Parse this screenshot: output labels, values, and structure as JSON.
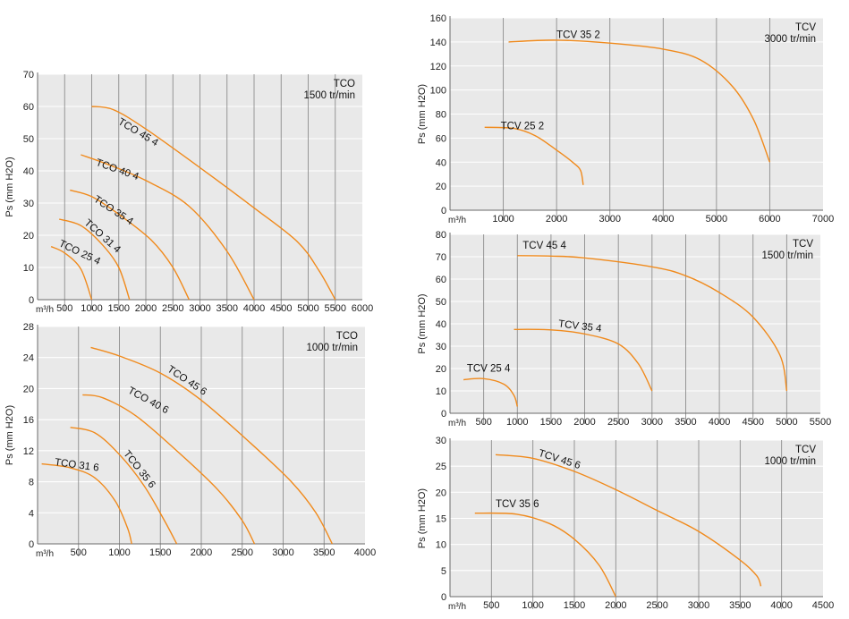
{
  "chart_data": [
    {
      "id": "tco1500",
      "type": "line",
      "ylabel": "Ps (mm H2O)",
      "xunit": "m³/h",
      "xlim": [
        0,
        6000
      ],
      "ylim": [
        0,
        70
      ],
      "xticks": [
        {
          "v": 0,
          "t": "0"
        },
        {
          "v": 500,
          "t": "500"
        },
        {
          "v": 1000,
          "t": "1000"
        },
        {
          "v": 1500,
          "t": "1500"
        },
        {
          "v": 2000,
          "t": "2000"
        },
        {
          "v": 2500,
          "t": "2500"
        },
        {
          "v": 3000,
          "t": "3000"
        },
        {
          "v": 3500,
          "t": "3500"
        },
        {
          "v": 4000,
          "t": "4000"
        },
        {
          "v": 4500,
          "t": "4500"
        },
        {
          "v": 5000,
          "t": "5000"
        },
        {
          "v": 5500,
          "t": "5500"
        },
        {
          "v": 6000,
          "t": "6000"
        }
      ],
      "yticks": [
        {
          "v": 10,
          "t": "10"
        },
        {
          "v": 20,
          "t": "20"
        },
        {
          "v": 30,
          "t": "30"
        },
        {
          "v": 40,
          "t": "40"
        },
        {
          "v": 50,
          "t": "50"
        },
        {
          "v": 60,
          "t": "60"
        },
        {
          "v": 70,
          "t": "70"
        }
      ],
      "vgrid": [
        500,
        1000,
        1500,
        2000,
        2500,
        3000,
        3500,
        4000,
        4500,
        5000,
        5500
      ],
      "hgrid": [
        10,
        20,
        30,
        40,
        50,
        60,
        70
      ],
      "annotation": [
        "TCO",
        "1500 tr/min"
      ],
      "series": [
        {
          "name": "TCO 45 4",
          "x": [
            1000,
            1400,
            2000,
            3000,
            4000,
            4800,
            5200,
            5500
          ],
          "y": [
            60,
            59,
            53,
            41,
            28.5,
            18,
            9,
            0
          ],
          "label_at": [
            1450,
            54
          ]
        },
        {
          "name": "TCO 40 4",
          "x": [
            800,
            1300,
            2000,
            2800,
            3500,
            4000
          ],
          "y": [
            45,
            42,
            37,
            29,
            15,
            0
          ],
          "label_at": [
            1050,
            41
          ]
        },
        {
          "name": "TCO 35 4",
          "x": [
            600,
            1000,
            1500,
            2100,
            2500,
            2800
          ],
          "y": [
            34,
            32,
            26.5,
            18.5,
            10,
            0
          ],
          "label_at": [
            1000,
            30
          ]
        },
        {
          "name": "TCO 31 4",
          "x": [
            400,
            800,
            1200,
            1500,
            1700
          ],
          "y": [
            25,
            23,
            17,
            10,
            0
          ],
          "label_at": [
            820,
            23
          ]
        },
        {
          "name": "TCO 25 4",
          "x": [
            250,
            500,
            800,
            1000
          ],
          "y": [
            16.5,
            14.5,
            9.5,
            0
          ],
          "label_at": [
            360,
            16
          ]
        }
      ]
    },
    {
      "id": "tco1000",
      "type": "line",
      "ylabel": "Ps (mm H2O)",
      "xunit": "m³/h",
      "xlim": [
        0,
        4000
      ],
      "ylim": [
        0,
        28
      ],
      "xticks": [
        {
          "v": 0,
          "t": "0"
        },
        {
          "v": 500,
          "t": "500"
        },
        {
          "v": 1000,
          "t": "1000"
        },
        {
          "v": 1500,
          "t": "1500"
        },
        {
          "v": 2000,
          "t": "2000"
        },
        {
          "v": 2500,
          "t": "2500"
        },
        {
          "v": 3000,
          "t": "3000"
        },
        {
          "v": 3500,
          "t": "3500"
        },
        {
          "v": 4000,
          "t": "4000"
        }
      ],
      "yticks": [
        {
          "v": 4,
          "t": "4"
        },
        {
          "v": 8,
          "t": "8"
        },
        {
          "v": 12,
          "t": "12"
        },
        {
          "v": 16,
          "t": "16"
        },
        {
          "v": 20,
          "t": "20"
        },
        {
          "v": 24,
          "t": "24"
        },
        {
          "v": 28,
          "t": "28"
        }
      ],
      "vgrid": [
        500,
        1000,
        1500,
        2000,
        2500,
        3000,
        3500
      ],
      "hgrid": [
        4,
        8,
        12,
        16,
        20,
        24,
        28
      ],
      "annotation": [
        "TCO",
        "1000 tr/min"
      ],
      "series": [
        {
          "name": "TCO 45 6",
          "x": [
            650,
            1000,
            1500,
            2000,
            2600,
            3100,
            3400,
            3600
          ],
          "y": [
            25.3,
            24.2,
            22,
            18.5,
            13,
            8,
            4,
            0
          ],
          "label_at": [
            1560,
            22
          ]
        },
        {
          "name": "TCO 40 6",
          "x": [
            550,
            800,
            1200,
            1700,
            2200,
            2500,
            2650
          ],
          "y": [
            19.2,
            18.8,
            16.5,
            12,
            7,
            3,
            0
          ],
          "label_at": [
            1080,
            19.2
          ]
        },
        {
          "name": "TCO 35 6",
          "x": [
            400,
            700,
            1000,
            1300,
            1550,
            1700
          ],
          "y": [
            15,
            14.3,
            11.5,
            7.5,
            3,
            0
          ],
          "label_at": [
            1020,
            11.4
          ]
        },
        {
          "name": "TCO 31 6",
          "x": [
            50,
            400,
            700,
            950,
            1100,
            1150
          ],
          "y": [
            10.3,
            9.8,
            8.5,
            5.5,
            2,
            0
          ],
          "label_at": [
            200,
            9.8
          ]
        }
      ]
    },
    {
      "id": "tcv3000",
      "type": "line",
      "ylabel": "Ps (mm H2O)",
      "xunit": "m³/h",
      "xlim": [
        0,
        7000
      ],
      "ylim": [
        0,
        160
      ],
      "xticks": [
        {
          "v": 0,
          "t": "0"
        },
        {
          "v": 1000,
          "t": "1000"
        },
        {
          "v": 2000,
          "t": "2000"
        },
        {
          "v": 3000,
          "t": "3000"
        },
        {
          "v": 4000,
          "t": "4000"
        },
        {
          "v": 5000,
          "t": "5000"
        },
        {
          "v": 6000,
          "t": "6000"
        },
        {
          "v": 7000,
          "t": "7000"
        }
      ],
      "yticks": [
        {
          "v": 20,
          "t": "20"
        },
        {
          "v": 40,
          "t": "40"
        },
        {
          "v": 60,
          "t": "60"
        },
        {
          "v": 80,
          "t": "80"
        },
        {
          "v": 100,
          "t": "100"
        },
        {
          "v": 120,
          "t": "120"
        },
        {
          "v": 140,
          "t": "140"
        },
        {
          "v": 160,
          "t": "160"
        }
      ],
      "vgrid": [
        1000,
        2000,
        3000,
        4000,
        5000,
        6000
      ],
      "hgrid": [
        20,
        40,
        60,
        80,
        100,
        120,
        140,
        160
      ],
      "annotation": [
        "TCV",
        "3000 tr/min"
      ],
      "series": [
        {
          "name": "TCV 35 2",
          "x": [
            1100,
            2000,
            3000,
            4000,
            4700,
            5300,
            5700,
            6000
          ],
          "y": [
            140,
            141.5,
            139,
            134,
            125,
            103,
            75,
            40
          ],
          "label_at": [
            2000,
            141
          ]
        },
        {
          "name": "TCV 25 2",
          "x": [
            650,
            1200,
            1600,
            2000,
            2300,
            2450,
            2500
          ],
          "y": [
            69,
            68,
            62,
            50,
            40,
            33,
            21
          ],
          "label_at": [
            950,
            65
          ]
        }
      ]
    },
    {
      "id": "tcv1500",
      "type": "line",
      "ylabel": "Ps (mm H2O)",
      "xunit": "m³/h",
      "xlim": [
        0,
        5500
      ],
      "ylim": [
        0,
        80
      ],
      "xticks": [
        {
          "v": 0,
          "t": "0"
        },
        {
          "v": 500,
          "t": "500"
        },
        {
          "v": 1000,
          "t": "1000"
        },
        {
          "v": 1500,
          "t": "1500"
        },
        {
          "v": 2000,
          "t": "2000"
        },
        {
          "v": 2500,
          "t": "2500"
        },
        {
          "v": 3000,
          "t": "3000"
        },
        {
          "v": 3500,
          "t": "3500"
        },
        {
          "v": 4000,
          "t": "4000"
        },
        {
          "v": 4500,
          "t": "4500"
        },
        {
          "v": 5000,
          "t": "5000"
        },
        {
          "v": 5500,
          "t": "5500"
        }
      ],
      "yticks": [
        {
          "v": 10,
          "t": "10"
        },
        {
          "v": 20,
          "t": "20"
        },
        {
          "v": 30,
          "t": "30"
        },
        {
          "v": 40,
          "t": "40"
        },
        {
          "v": 50,
          "t": "50"
        },
        {
          "v": 60,
          "t": "60"
        },
        {
          "v": 70,
          "t": "70"
        },
        {
          "v": 80,
          "t": "80"
        }
      ],
      "vgrid": [
        500,
        1000,
        1500,
        2000,
        2500,
        3000,
        3500,
        4000,
        4500,
        5000
      ],
      "hgrid": [
        10,
        20,
        30,
        40,
        50,
        60,
        70,
        80
      ],
      "annotation": [
        "TCV",
        "1500 tr/min"
      ],
      "series": [
        {
          "name": "TCV 45 4",
          "x": [
            1000,
            1500,
            2000,
            3000,
            3500,
            4000,
            4500,
            4900,
            5000
          ],
          "y": [
            70.5,
            70.3,
            69.5,
            65.5,
            61.5,
            54,
            43,
            26,
            10
          ],
          "label_at": [
            1080,
            72.5
          ]
        },
        {
          "name": "TCV 35 4",
          "x": [
            950,
            1500,
            2000,
            2500,
            2800,
            3000
          ],
          "y": [
            37.5,
            37.3,
            35.5,
            31,
            22,
            10
          ],
          "label_at": [
            1600,
            37.5
          ]
        },
        {
          "name": "TCV 25 4",
          "x": [
            200,
            500,
            800,
            950,
            1000
          ],
          "y": [
            15,
            15.5,
            13,
            8,
            3
          ],
          "label_at": [
            250,
            17.5
          ]
        }
      ]
    },
    {
      "id": "tcv1000",
      "type": "line",
      "ylabel": "Ps (mm H2O)",
      "xunit": "m³/h",
      "xlim": [
        0,
        4500
      ],
      "ylim": [
        0,
        30
      ],
      "xticks": [
        {
          "v": 0,
          "t": "0"
        },
        {
          "v": 500,
          "t": "500"
        },
        {
          "v": 1000,
          "t": "1000"
        },
        {
          "v": 1500,
          "t": "1500"
        },
        {
          "v": 2000,
          "t": "2000"
        },
        {
          "v": 2500,
          "t": "2500"
        },
        {
          "v": 3000,
          "t": "3000"
        },
        {
          "v": 3500,
          "t": "3500"
        },
        {
          "v": 4000,
          "t": "4000"
        },
        {
          "v": 4500,
          "t": "4500"
        }
      ],
      "yticks": [
        {
          "v": 5,
          "t": "5"
        },
        {
          "v": 10,
          "t": "10"
        },
        {
          "v": 15,
          "t": "15"
        },
        {
          "v": 20,
          "t": "20"
        },
        {
          "v": 25,
          "t": "25"
        },
        {
          "v": 30,
          "t": "30"
        }
      ],
      "vgrid": [
        500,
        1000,
        1500,
        2000,
        2500,
        3000,
        3500,
        4000
      ],
      "hgrid": [
        5,
        10,
        15,
        20,
        25,
        30
      ],
      "annotation": [
        "TCV",
        "1000 tr/min"
      ],
      "series": [
        {
          "name": "TCV 45 6",
          "x": [
            550,
            1000,
            1500,
            2000,
            2500,
            3000,
            3500,
            3700,
            3750
          ],
          "y": [
            27.2,
            26.5,
            24,
            20.5,
            16.5,
            12.5,
            7,
            4,
            2
          ],
          "label_at": [
            1050,
            26.5
          ]
        },
        {
          "name": "TCV 35 6",
          "x": [
            300,
            800,
            1200,
            1500,
            1800,
            2000
          ],
          "y": [
            16,
            15.8,
            14,
            11,
            6,
            0
          ],
          "label_at": [
            550,
            16.6
          ]
        }
      ]
    }
  ]
}
